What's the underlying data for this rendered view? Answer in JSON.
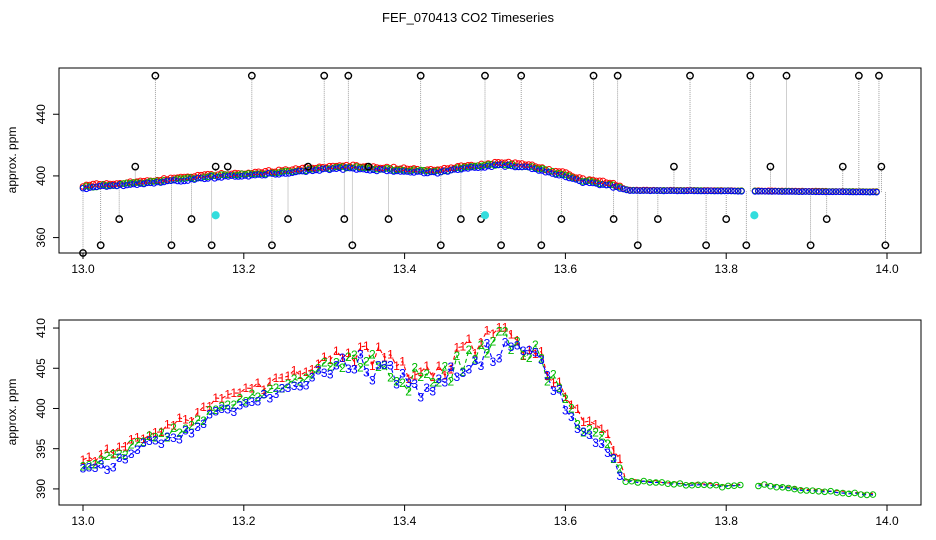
{
  "figure": {
    "title": "FEF_070413  CO2 Timeseries"
  },
  "chart_data": [
    {
      "type": "scatter",
      "title": "",
      "xlabel": "",
      "ylabel": "approx. ppm",
      "xlim": [
        13.0,
        14.0
      ],
      "ylim": [
        350,
        470
      ],
      "xticks": [
        13.0,
        13.2,
        13.4,
        13.6,
        13.8,
        14.0
      ],
      "xtick_labels": [
        "13.0",
        "13.2",
        "13.4",
        "13.6",
        "13.8",
        "14.0"
      ],
      "yticks": [
        360,
        400,
        440
      ],
      "ytick_labels": [
        "360",
        "400",
        "440"
      ],
      "colors": {
        "s1": "#ff0000",
        "s2": "#00bb00",
        "s3": "#0000ff",
        "ref": "#000000",
        "cal": "#33dddd",
        "line": "#888888"
      },
      "profile": [
        [
          13.0,
          392
        ],
        [
          13.04,
          393.5
        ],
        [
          13.08,
          395
        ],
        [
          13.12,
          397
        ],
        [
          13.16,
          399
        ],
        [
          13.2,
          400
        ],
        [
          13.25,
          402
        ],
        [
          13.3,
          404
        ],
        [
          13.33,
          405
        ],
        [
          13.36,
          404
        ],
        [
          13.4,
          403
        ],
        [
          13.44,
          402
        ],
        [
          13.48,
          405
        ],
        [
          13.52,
          407
        ],
        [
          13.56,
          405
        ],
        [
          13.58,
          402
        ],
        [
          13.6,
          400
        ],
        [
          13.62,
          396
        ],
        [
          13.64,
          395
        ],
        [
          13.66,
          393
        ],
        [
          13.68,
          390.5
        ],
        [
          13.8,
          390.2
        ],
        [
          13.85,
          390
        ],
        [
          13.99,
          389.5
        ]
      ],
      "gap": [
        13.82,
        13.835
      ],
      "reference_x": [
        13.0,
        13.022,
        13.045,
        13.065,
        13.09,
        13.11,
        13.135,
        13.16,
        13.165,
        13.18,
        13.21,
        13.235,
        13.255,
        13.28,
        13.3,
        13.325,
        13.33,
        13.335,
        13.355,
        13.38,
        13.42,
        13.445,
        13.47,
        13.495,
        13.5,
        13.52,
        13.545,
        13.57,
        13.595,
        13.635,
        13.66,
        13.665,
        13.69,
        13.715,
        13.735,
        13.755,
        13.775,
        13.8,
        13.825,
        13.83,
        13.855,
        13.875,
        13.905,
        13.925,
        13.945,
        13.965,
        13.99,
        13.993,
        13.998
      ],
      "reference_y": [
        350,
        355,
        372,
        406,
        465,
        355,
        372,
        355,
        406,
        406,
        465,
        355,
        372,
        406,
        465,
        372,
        465,
        355,
        406,
        372,
        465,
        355,
        372,
        372,
        465,
        355,
        465,
        355,
        372,
        465,
        372,
        465,
        355,
        372,
        406,
        465,
        355,
        372,
        355,
        465,
        406,
        465,
        355,
        372,
        406,
        465,
        465,
        406,
        355
      ],
      "cal_x": [
        13.165,
        13.5,
        13.835
      ],
      "cal_y": [
        374.5,
        374.5,
        374.5
      ]
    },
    {
      "type": "line",
      "title": "",
      "xlabel": "",
      "ylabel": "approx. ppm",
      "xlim": [
        13.0,
        14.0
      ],
      "ylim": [
        388,
        411
      ],
      "xticks": [
        13.0,
        13.2,
        13.4,
        13.6,
        13.8,
        14.0
      ],
      "xtick_labels": [
        "13.0",
        "13.2",
        "13.4",
        "13.6",
        "13.8",
        "14.0"
      ],
      "yticks": [
        390,
        395,
        400,
        405,
        410
      ],
      "ytick_labels": [
        "390",
        "395",
        "400",
        "405",
        "410"
      ],
      "series": [
        {
          "name": "1",
          "color": "#ff0000",
          "offset": 1.6
        },
        {
          "name": "2",
          "color": "#00bb00",
          "offset": 0.7
        },
        {
          "name": "3",
          "color": "#0000ff",
          "offset": 0.0
        }
      ],
      "profile": [
        [
          13.0,
          392
        ],
        [
          13.02,
          392.5
        ],
        [
          13.05,
          393.5
        ],
        [
          13.07,
          395
        ],
        [
          13.1,
          396
        ],
        [
          13.13,
          397
        ],
        [
          13.16,
          399
        ],
        [
          13.2,
          400.5
        ],
        [
          13.25,
          402
        ],
        [
          13.3,
          404.5
        ],
        [
          13.33,
          405.5
        ],
        [
          13.36,
          405
        ],
        [
          13.4,
          403
        ],
        [
          13.44,
          402.5
        ],
        [
          13.48,
          406
        ],
        [
          13.52,
          407.5
        ],
        [
          13.56,
          406
        ],
        [
          13.6,
          400
        ],
        [
          13.62,
          397
        ],
        [
          13.65,
          395.5
        ],
        [
          13.67,
          391
        ],
        [
          13.8,
          390.3
        ],
        [
          13.85,
          390.5
        ],
        [
          13.9,
          389.8
        ],
        [
          13.99,
          389.2
        ]
      ],
      "gap": [
        13.823,
        13.835
      ]
    }
  ]
}
